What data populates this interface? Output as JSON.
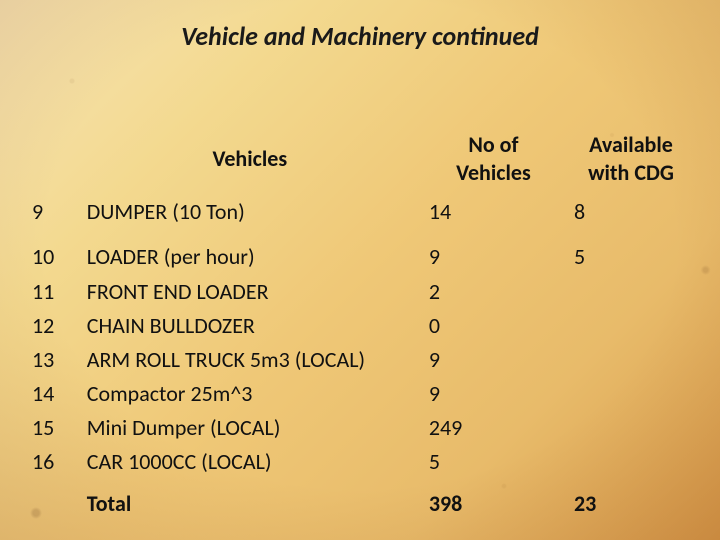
{
  "title": "Vehicle and Machinery continued",
  "headers": {
    "num": "",
    "vehicles": "Vehicles",
    "count": "No of Vehicles",
    "available": "Available with CDG"
  },
  "rows": [
    {
      "n": "9",
      "vehicle": "DUMPER (10 Ton)",
      "count": "14",
      "available": "8"
    },
    {
      "n": "10",
      "vehicle": "LOADER (per hour)",
      "count": "9",
      "available": "5"
    },
    {
      "n": "11",
      "vehicle": "FRONT END LOADER",
      "count": "2",
      "available": ""
    },
    {
      "n": "12",
      "vehicle": "CHAIN BULLDOZER",
      "count": "0",
      "available": ""
    },
    {
      "n": "13",
      "vehicle": "ARM ROLL TRUCK 5m3    (LOCAL)",
      "count": "9",
      "available": ""
    },
    {
      "n": "14",
      "vehicle": "Compactor 25m^3",
      "count": "9",
      "available": ""
    },
    {
      "n": "15",
      "vehicle": "Mini Dumper    (LOCAL)",
      "count": "249",
      "available": ""
    },
    {
      "n": "16",
      "vehicle": "CAR 1000CC    (LOCAL)",
      "count": "5",
      "available": ""
    }
  ],
  "total": {
    "label": "Total",
    "count": "398",
    "available": "23"
  },
  "style": {
    "title_font_size": 26,
    "body_font_size": 22,
    "text_color": "#111111",
    "bg_gradient": [
      "#f6e4b4",
      "#f3d98f",
      "#efc877",
      "#e8bb6a",
      "#d79a4a"
    ],
    "vignette_color": "#4a1a00"
  }
}
